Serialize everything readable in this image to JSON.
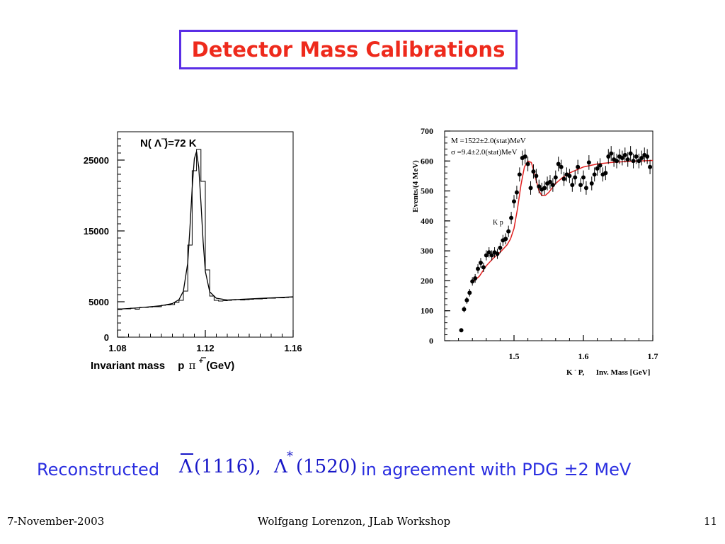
{
  "slide": {
    "title": "Detector Mass Calibrations",
    "caption_prefix": "Reconstructed",
    "caption_lambda_symbol": "Λ",
    "caption_lambda_mass": "(1116),",
    "caption_lstar_symbol": "Λ",
    "caption_lstar_sup": "*",
    "caption_lstar_mass": "(1520)",
    "caption_suffix": "in agreement with PDG ±2 MeV",
    "footer_date": "7-November-2003",
    "footer_center": "Wolfgang Lorenzon, JLab Workshop",
    "footer_page": "11",
    "colors": {
      "title": "#ee2a1c",
      "title_border": "#5a2ee6",
      "caption": "#2a2ee0",
      "fit_curve": "#e02020"
    }
  },
  "chart_data": [
    {
      "type": "line",
      "annotation": "N( Λ )=72 K",
      "xlabel": "Invariant mass  p π (GeV)",
      "xlabel_parts": {
        "lead": "Invariant mass",
        "pbar": "p",
        "pi": "π",
        "pi_sup": "+",
        "unit": "(GeV)"
      },
      "ylabel": "",
      "xlim": [
        1.08,
        1.16
      ],
      "ylim": [
        0,
        29000
      ],
      "x_ticks": [
        1.08,
        1.12,
        1.16
      ],
      "x_tick_labels": [
        "1.08",
        "1.12",
        "1.16"
      ],
      "y_ticks": [
        0,
        5000,
        15000,
        25000
      ],
      "y_tick_labels": [
        "0",
        "5000",
        "15000",
        "25000"
      ],
      "grid": false,
      "series": [
        {
          "style": "histogram",
          "bin_width": 0.002,
          "x": [
            1.08,
            1.082,
            1.084,
            1.086,
            1.088,
            1.09,
            1.092,
            1.094,
            1.096,
            1.098,
            1.1,
            1.102,
            1.104,
            1.106,
            1.108,
            1.11,
            1.112,
            1.114,
            1.116,
            1.118,
            1.12,
            1.122,
            1.124,
            1.126,
            1.128,
            1.13,
            1.132,
            1.134,
            1.136,
            1.138,
            1.14,
            1.142,
            1.144,
            1.146,
            1.148,
            1.15,
            1.152,
            1.154,
            1.156,
            1.158
          ],
          "values": [
            3900,
            4000,
            4000,
            4100,
            3950,
            4200,
            4200,
            4250,
            4300,
            4300,
            4500,
            4550,
            4600,
            4900,
            5200,
            6500,
            13000,
            23500,
            26500,
            22000,
            9500,
            5800,
            5200,
            5100,
            5150,
            5200,
            5250,
            5300,
            5250,
            5300,
            5350,
            5400,
            5400,
            5450,
            5500,
            5500,
            5550,
            5550,
            5600,
            5650
          ]
        },
        {
          "style": "fit",
          "x": [
            1.08,
            1.09,
            1.1,
            1.105,
            1.108,
            1.11,
            1.112,
            1.113,
            1.114,
            1.115,
            1.116,
            1.117,
            1.118,
            1.119,
            1.12,
            1.122,
            1.125,
            1.13,
            1.14,
            1.15,
            1.16
          ],
          "values": [
            3950,
            4150,
            4450,
            4750,
            5300,
            6500,
            10500,
            15500,
            21000,
            25200,
            26200,
            24000,
            19000,
            13500,
            9300,
            6400,
            5500,
            5250,
            5400,
            5550,
            5700
          ]
        }
      ]
    },
    {
      "type": "scatter",
      "annotations": [
        "M =1522±2.0(stat)MeV",
        "σ =9.4±2.0(stat)MeV",
        "K p"
      ],
      "annotation_subscript": "Λ",
      "annotation_sup": "-",
      "xlabel": "K P,      Inv. Mass [GeV]",
      "xlabel_parts": {
        "k": "K",
        "k_sup": "-",
        "rest": "P,      Inv. Mass [GeV]"
      },
      "ylabel": "Events/(4 MeV)",
      "xlim": [
        1.4,
        1.7
      ],
      "ylim": [
        0,
        700
      ],
      "x_ticks": [
        1.5,
        1.6,
        1.7
      ],
      "x_tick_labels": [
        "1.5",
        "1.6",
        "1.7"
      ],
      "y_ticks": [
        0,
        100,
        200,
        300,
        400,
        500,
        600,
        700
      ],
      "y_tick_labels": [
        "0",
        "100",
        "200",
        "300",
        "400",
        "500",
        "600",
        "700"
      ],
      "grid": false,
      "series": [
        {
          "style": "points",
          "x": [
            1.424,
            1.428,
            1.432,
            1.436,
            1.44,
            1.444,
            1.448,
            1.452,
            1.456,
            1.46,
            1.464,
            1.468,
            1.472,
            1.476,
            1.48,
            1.484,
            1.488,
            1.492,
            1.496,
            1.5,
            1.504,
            1.508,
            1.512,
            1.516,
            1.52,
            1.524,
            1.528,
            1.532,
            1.536,
            1.54,
            1.544,
            1.548,
            1.552,
            1.556,
            1.56,
            1.564,
            1.568,
            1.572,
            1.576,
            1.58,
            1.584,
            1.588,
            1.592,
            1.596,
            1.6,
            1.604,
            1.608,
            1.612,
            1.616,
            1.62,
            1.624,
            1.628,
            1.632,
            1.636,
            1.64,
            1.644,
            1.648,
            1.652,
            1.656,
            1.66,
            1.664,
            1.668,
            1.672,
            1.676,
            1.68,
            1.684,
            1.688,
            1.692,
            1.696
          ],
          "values": [
            35,
            105,
            135,
            160,
            198,
            208,
            240,
            260,
            245,
            285,
            295,
            285,
            295,
            290,
            310,
            335,
            340,
            365,
            410,
            465,
            495,
            555,
            610,
            615,
            590,
            510,
            565,
            550,
            515,
            505,
            510,
            525,
            530,
            520,
            545,
            590,
            580,
            540,
            555,
            550,
            520,
            545,
            580,
            520,
            545,
            510,
            595,
            525,
            555,
            575,
            585,
            555,
            560,
            615,
            625,
            605,
            600,
            615,
            610,
            620,
            605,
            625,
            600,
            615,
            600,
            610,
            620,
            615,
            580
          ]
        },
        {
          "style": "fit",
          "x": [
            1.44,
            1.45,
            1.46,
            1.47,
            1.48,
            1.49,
            1.495,
            1.5,
            1.505,
            1.51,
            1.515,
            1.52,
            1.525,
            1.528,
            1.532,
            1.536,
            1.54,
            1.545,
            1.55,
            1.555,
            1.56,
            1.57,
            1.58,
            1.59,
            1.6,
            1.62,
            1.64,
            1.66,
            1.68,
            1.7
          ],
          "values": [
            195,
            215,
            250,
            275,
            295,
            320,
            340,
            375,
            440,
            520,
            580,
            600,
            595,
            570,
            535,
            500,
            485,
            485,
            495,
            510,
            525,
            545,
            560,
            570,
            580,
            590,
            595,
            598,
            600,
            602
          ]
        }
      ]
    }
  ]
}
